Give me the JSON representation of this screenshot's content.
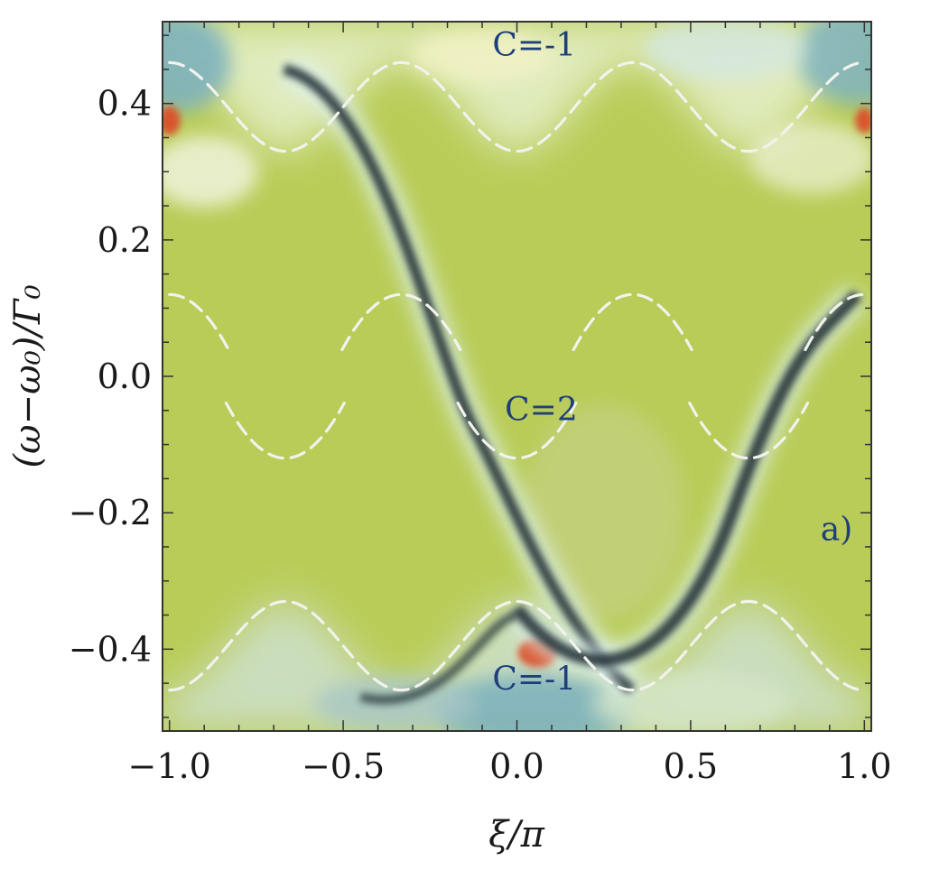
{
  "chart_data": {
    "type": "heatmap",
    "xlabel": "ξ/π",
    "ylabel": "(ω−ω₀)/Γ₀",
    "xlim": [
      -1.02,
      1.02
    ],
    "ylim": [
      -0.52,
      0.52
    ],
    "x_ticks": [
      -1.0,
      -0.5,
      0.0,
      0.5,
      1.0
    ],
    "x_tick_labels": [
      "−1.0",
      "−0.5",
      "0.0",
      "0.5",
      "1.0"
    ],
    "y_ticks": [
      -0.4,
      -0.2,
      0.0,
      0.2,
      0.4
    ],
    "y_tick_labels": [
      "−0.4",
      "−0.2",
      "0.0",
      "0.2",
      "0.4"
    ],
    "grid": false,
    "colormap": {
      "background": "#b9cc58",
      "band_edge_light": "#dff3f6",
      "band_edge_dark": "#1d2b33",
      "hot_spot": "#d9542d",
      "corner": "#7fb2bd"
    },
    "dashed_color": "#f4f4ef",
    "dashed_bands": [
      {
        "name": "upper band",
        "form": "-0.065*cos(3*pi*x) + 0.395",
        "x_range": [
          -1.0,
          1.0
        ]
      },
      {
        "name": "lower band",
        "form": "0.065*cos(3*pi*x) - 0.395",
        "x_range": [
          -1.0,
          1.0
        ]
      },
      {
        "name": "middle upper arcs",
        "form": "0.12 - 2.8*(x - c)^2",
        "centers": [
          -1.0,
          -0.333,
          0.333,
          1.0
        ],
        "half_width": 0.17
      },
      {
        "name": "middle lower arcs",
        "form": "-0.12 + 2.8*(x - c)^2",
        "centers": [
          -0.667,
          0.0,
          0.667
        ],
        "half_width": 0.17
      }
    ],
    "edge_state": {
      "from": [
        -0.67,
        0.45
      ],
      "to": [
        0.33,
        -0.46
      ],
      "rising_from": [
        0.0,
        -0.34
      ],
      "rising_to": [
        0.98,
        0.12
      ]
    },
    "annotations": [
      {
        "text": "C=-1",
        "x": 0.05,
        "y": 0.47
      },
      {
        "text": "C=2",
        "x": 0.07,
        "y": -0.065
      },
      {
        "text": "a)",
        "x": 0.92,
        "y": -0.24
      },
      {
        "text": "C=-1",
        "x": 0.05,
        "y": -0.46
      }
    ]
  }
}
